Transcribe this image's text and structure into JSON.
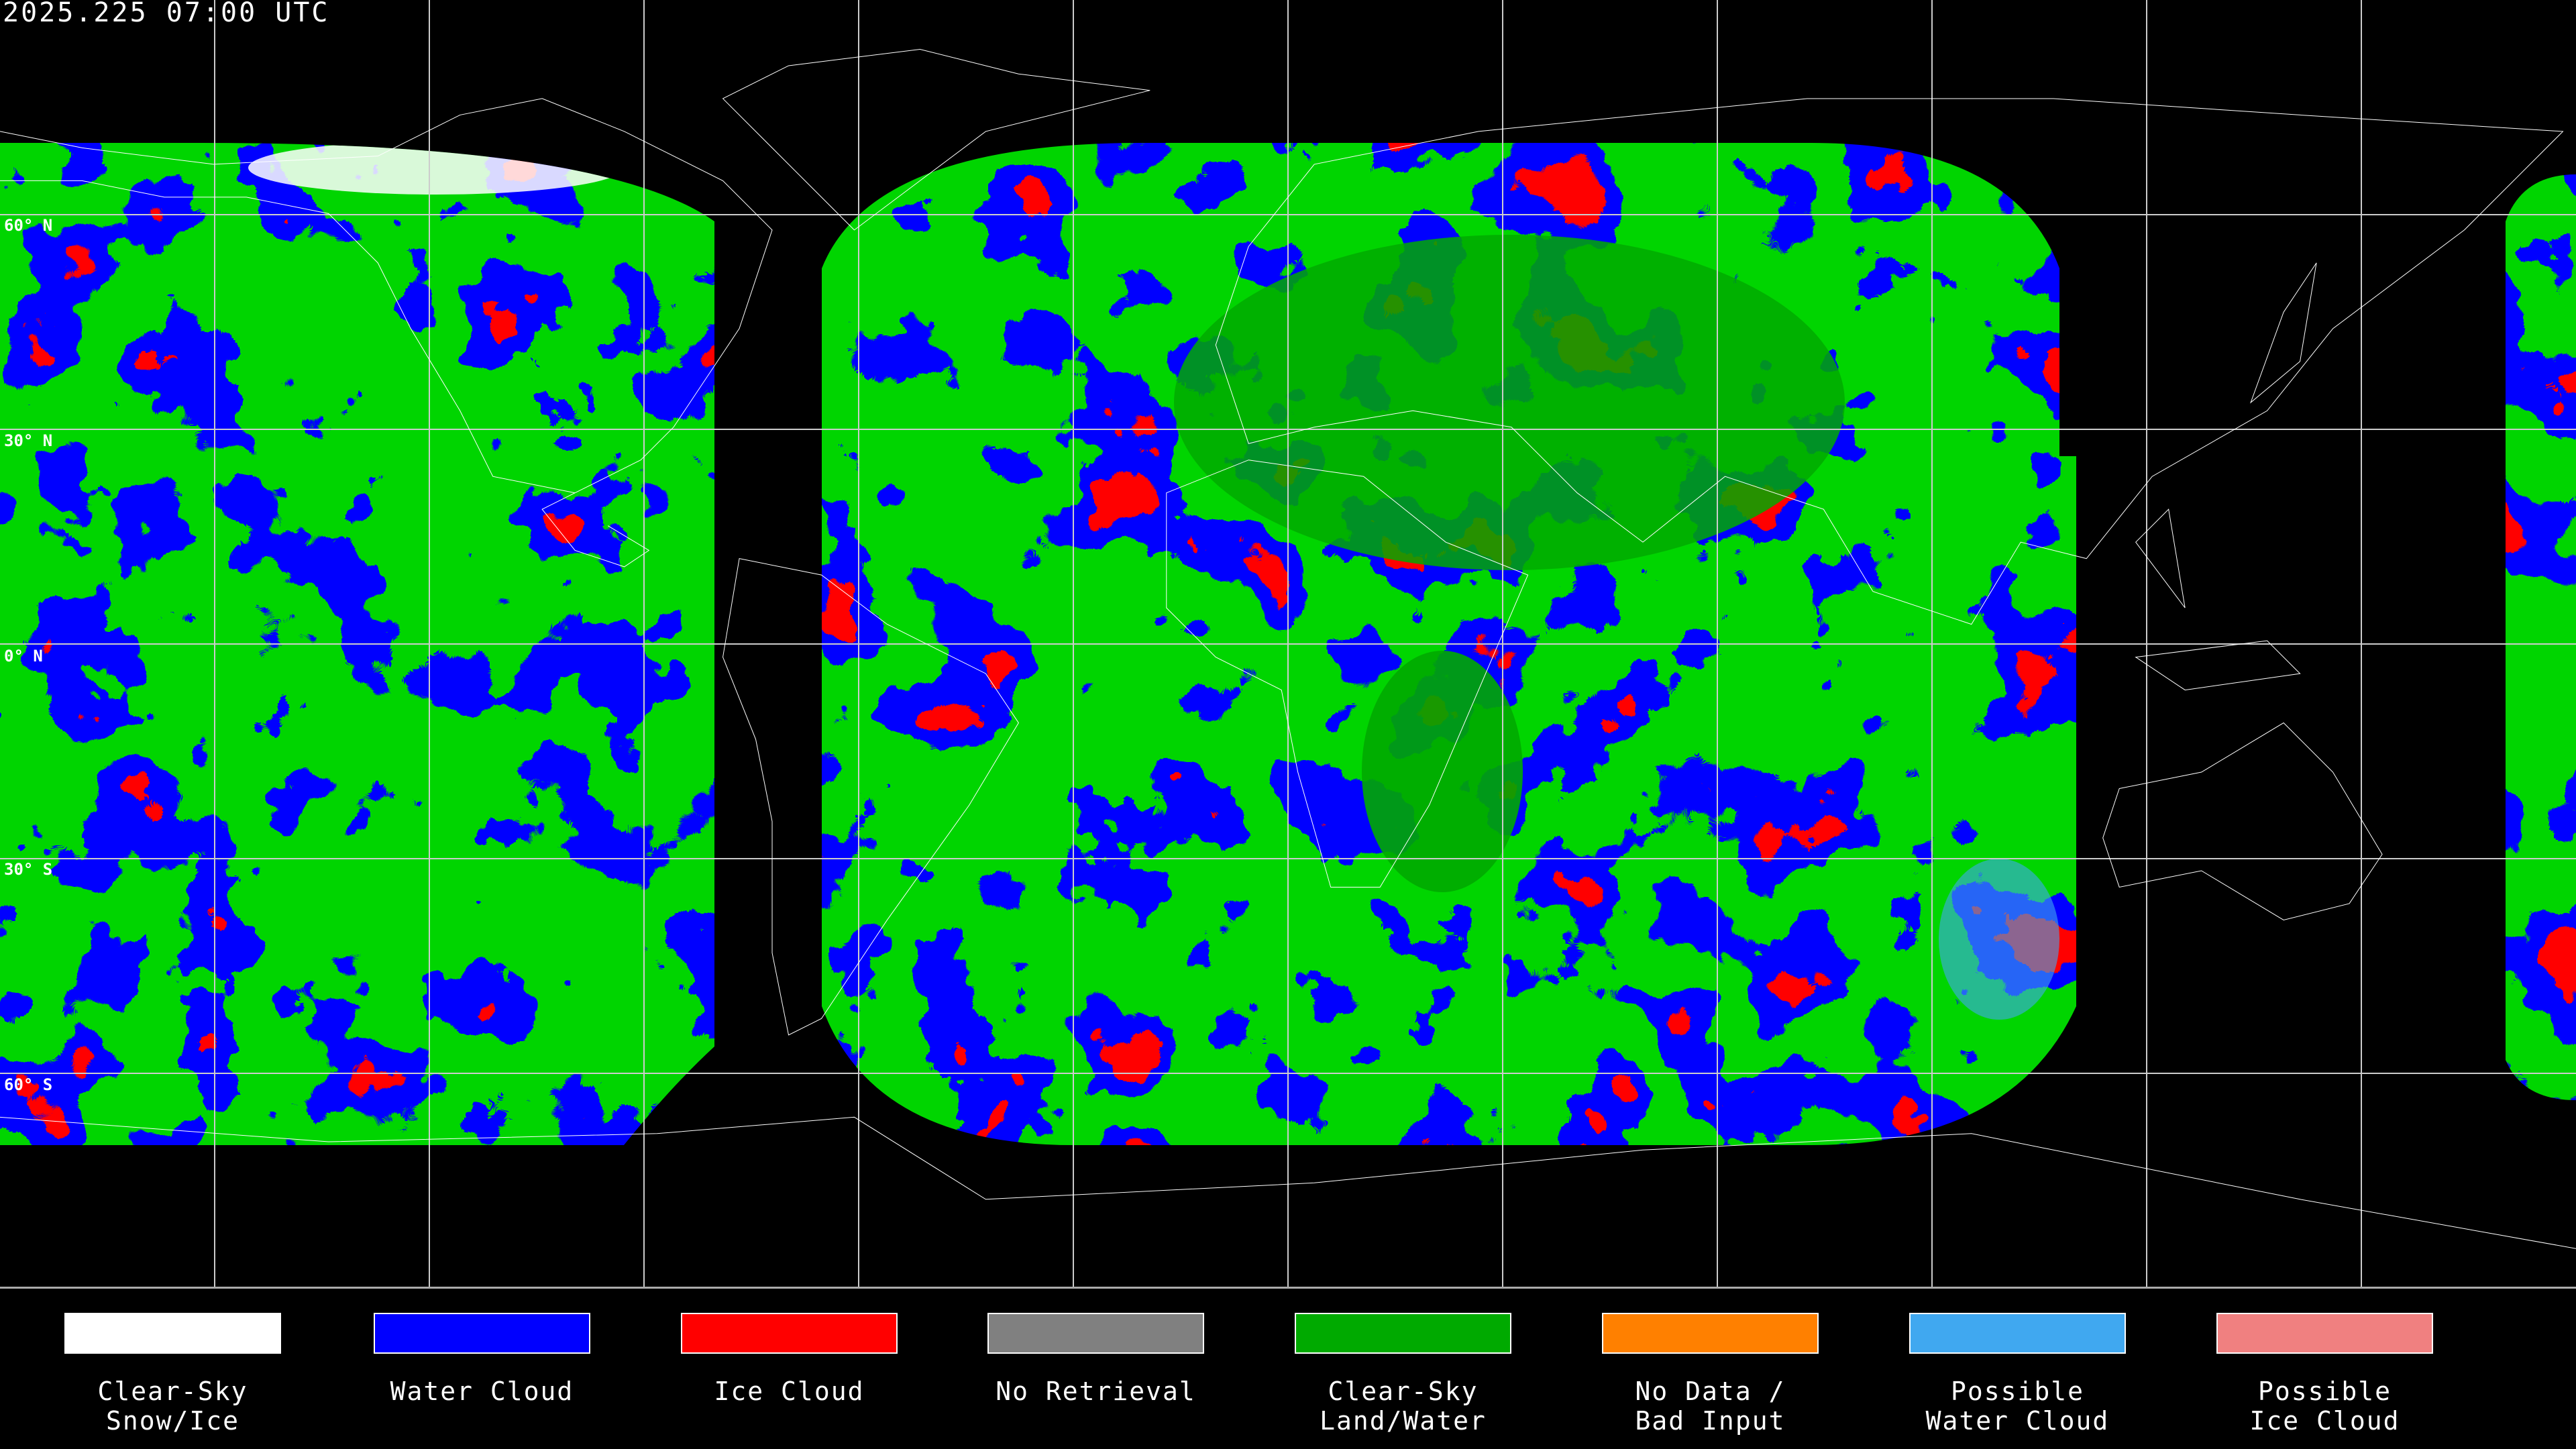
{
  "title": "2025.225 07:00 UTC",
  "lat_labels": [
    "60° N",
    "30° N",
    "0° N",
    "30° S",
    "60° S"
  ],
  "map": {
    "projection": "equirectangular",
    "grid_spacing_deg": 30,
    "background": "#000000",
    "coastline_color": "#ffffff"
  },
  "legend": [
    {
      "line1": "Clear-Sky",
      "line2": "Snow/Ice",
      "color": "#ffffff"
    },
    {
      "line1": "Water Cloud",
      "line2": "",
      "color": "#0000ff"
    },
    {
      "line1": "Ice Cloud",
      "line2": "",
      "color": "#ff0000"
    },
    {
      "line1": "No Retrieval",
      "line2": "",
      "color": "#808080"
    },
    {
      "line1": "Clear-Sky",
      "line2": "Land/Water",
      "color": "#00aa00"
    },
    {
      "line1": "No Data /",
      "line2": "Bad Input",
      "color": "#ff8000"
    },
    {
      "line1": "Possible",
      "line2": "Water Cloud",
      "color": "#40a8f0"
    },
    {
      "line1": "Possible",
      "line2": "Ice Cloud",
      "color": "#f08080"
    }
  ]
}
